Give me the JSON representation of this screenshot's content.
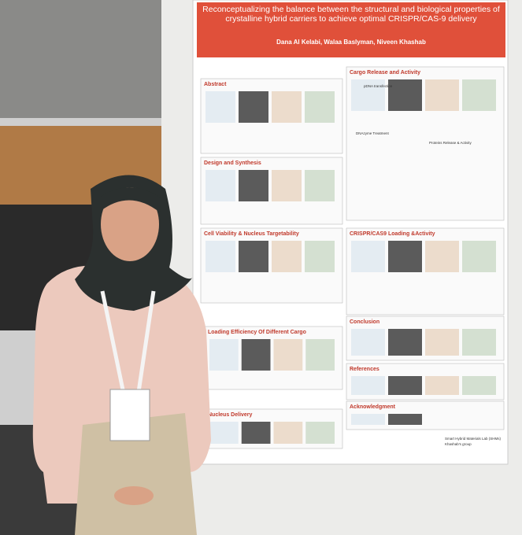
{
  "poster": {
    "title": "Reconceptualizing the balance between the structural and biological properties of crystalline hybrid carriers to achieve optimal CRISPR/CAS-9 delivery",
    "authors": "Dana Al Kelabi, Walaa Baslyman, Niveen Khashab",
    "sections": [
      "Abstract",
      "Cargo Release and Activity",
      "Design and Synthesis",
      "Cell Viability & Nucleus Targetability",
      "CRISPR/CAS9 Loading &Activity",
      "Loading Efficiency Of Different Cargo",
      "Conclusion",
      "Nucleus Delivery",
      "References",
      "Acknowledgment"
    ],
    "labels": [
      "pDNA transfection",
      "DNAzyme Treatment",
      "Proteins Release & Activity"
    ],
    "lab": "Smart Hybrid Materials Lab (SHMs)",
    "group": "Khashab's group"
  }
}
